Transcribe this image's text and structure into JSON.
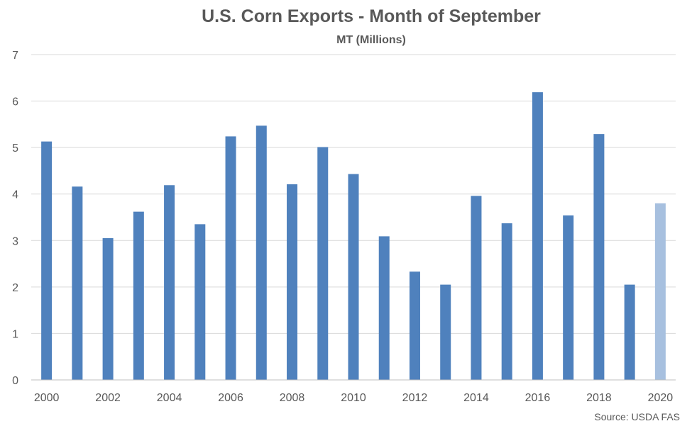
{
  "chart_data": {
    "type": "bar",
    "title": "U.S. Corn Exports - Month of September",
    "subtitle": "MT (Millions)",
    "xlabel": "",
    "ylabel": "",
    "ylim": [
      0,
      7
    ],
    "yticks": [
      "0",
      "1",
      "2",
      "3",
      "4",
      "5",
      "6",
      "7"
    ],
    "grid": true,
    "legend": "none",
    "categories": [
      "2000",
      "2001",
      "2002",
      "2003",
      "2004",
      "2005",
      "2006",
      "2007",
      "2008",
      "2009",
      "2010",
      "2011",
      "2012",
      "2013",
      "2014",
      "2015",
      "2016",
      "2017",
      "2018",
      "2019",
      "2020"
    ],
    "xtick_labels": [
      "2000",
      "",
      "2002",
      "",
      "2004",
      "",
      "2006",
      "",
      "2008",
      "",
      "2010",
      "",
      "2012",
      "",
      "2014",
      "",
      "2016",
      "",
      "2018",
      "",
      "2020"
    ],
    "values": [
      5.13,
      4.16,
      3.05,
      3.62,
      4.19,
      3.35,
      5.24,
      5.47,
      4.21,
      5.01,
      4.43,
      3.09,
      2.33,
      2.05,
      3.96,
      3.37,
      6.19,
      3.54,
      5.29,
      2.05,
      3.8
    ],
    "colors": {
      "bar": "#4f81bd",
      "highlight": "#a7c0df"
    },
    "highlight_category": "2020",
    "source": "Source: USDA FAS"
  }
}
